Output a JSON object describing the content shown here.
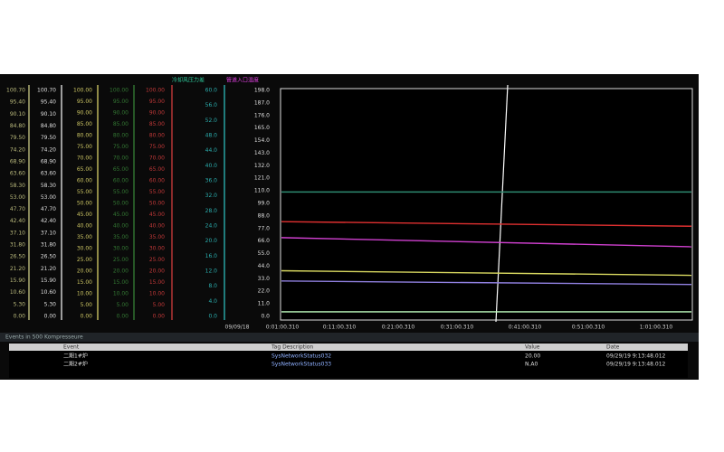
{
  "legend": [
    {
      "label": "冷却风压力差",
      "color": "#30d0a0"
    },
    {
      "label": "管道入口温度",
      "color": "#e040e0"
    }
  ],
  "axes": [
    {
      "color": "#d8d890",
      "labels": [
        "100.70",
        "95.40",
        "90.10",
        "84.80",
        "79.50",
        "74.20",
        "68.90",
        "63.60",
        "58.30",
        "53.00",
        "47.70",
        "42.40",
        "37.10",
        "31.80",
        "26.50",
        "21.20",
        "15.90",
        "10.60",
        "5.30",
        "0.00"
      ]
    },
    {
      "color": "#ffffff",
      "labels": [
        "100.70",
        "95.40",
        "90.10",
        "84.80",
        "79.50",
        "74.20",
        "68.90",
        "63.60",
        "58.30",
        "53.00",
        "47.70",
        "42.40",
        "37.10",
        "31.80",
        "26.50",
        "21.20",
        "15.90",
        "10.60",
        "5.30",
        "0.00"
      ]
    },
    {
      "color": "#e8e070",
      "labels": [
        "100.00",
        "95.00",
        "90.00",
        "85.00",
        "80.00",
        "75.00",
        "70.00",
        "65.00",
        "60.00",
        "55.00",
        "50.00",
        "45.00",
        "40.00",
        "35.00",
        "30.00",
        "25.00",
        "20.00",
        "15.00",
        "10.00",
        "5.00",
        "0.00"
      ]
    },
    {
      "color": "#3a8a3a",
      "labels": [
        "100.00",
        "95.00",
        "90.00",
        "85.00",
        "80.00",
        "75.00",
        "70.00",
        "65.00",
        "60.00",
        "55.00",
        "50.00",
        "45.00",
        "40.00",
        "35.00",
        "30.00",
        "25.00",
        "20.00",
        "15.00",
        "10.00",
        "5.00",
        "0.00"
      ]
    },
    {
      "color": "#e04040",
      "labels": [
        "100.00",
        "95.00",
        "90.00",
        "85.00",
        "80.00",
        "75.00",
        "70.00",
        "65.00",
        "60.00",
        "55.00",
        "50.00",
        "45.00",
        "40.00",
        "35.00",
        "30.00",
        "25.00",
        "20.00",
        "15.00",
        "10.00",
        "5.00",
        "0.00"
      ]
    },
    {
      "color": "#30c8c8",
      "labels": [
        "60.0",
        "56.0",
        "52.0",
        "48.0",
        "44.0",
        "40.0",
        "36.0",
        "32.0",
        "28.0",
        "24.0",
        "20.0",
        "16.0",
        "12.0",
        "8.0",
        "4.0",
        "0.0"
      ]
    },
    {
      "color": "#ffffff",
      "labels": [
        "198.0",
        "187.0",
        "176.0",
        "165.0",
        "154.0",
        "143.0",
        "132.0",
        "121.0",
        "110.0",
        "99.0",
        "88.0",
        "77.0",
        "66.0",
        "55.0",
        "44.0",
        "33.0",
        "22.0",
        "11.0",
        "0.0"
      ]
    }
  ],
  "trend": {
    "ylim": [
      0,
      198
    ],
    "x_labels": [
      "09/09/18",
      "0:01:00.310",
      "0:11:00.310",
      "0:21:00.310",
      "0:31:00.310",
      "0:41:00.310",
      "0:51:00.310",
      "1:01:00.310"
    ],
    "series": [
      {
        "color": "#2e8b70",
        "values": [
          109,
          109
        ]
      },
      {
        "color": "#e03030",
        "values": [
          83,
          79
        ]
      },
      {
        "color": "#d040d0",
        "values": [
          69,
          61
        ]
      },
      {
        "color": "#d8d860",
        "values": [
          40,
          36
        ]
      },
      {
        "color": "#9080e0",
        "values": [
          31,
          28
        ]
      },
      {
        "color": "#c0ffc0",
        "values": [
          4,
          4
        ]
      }
    ]
  },
  "events": {
    "status": "Events in 500 Kompresseure",
    "headers": [
      "Event",
      "Tag Description",
      "Value",
      "Date"
    ],
    "rows": [
      [
        "二期1#炉",
        "SysNetworkStatus032",
        "20.00",
        "09/29/19 9:13:48.012"
      ],
      [
        "二期2#炉",
        "SysNetworkStatus033",
        "N.A0",
        "09/29/19 9:13:48.012"
      ]
    ]
  }
}
